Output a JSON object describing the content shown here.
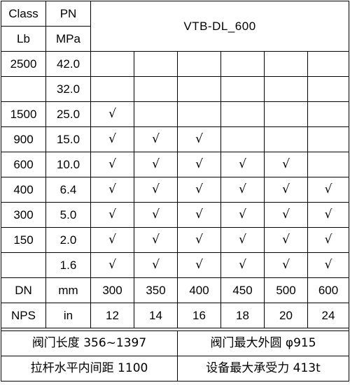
{
  "header": {
    "class_label": "Class",
    "pn_label": "PN",
    "lb_label": "Lb",
    "mpa_label": "MPa",
    "title": "VTB-DL_600"
  },
  "rows": [
    {
      "lb": "2500",
      "mpa": "42.0",
      "marks": [
        "",
        "",
        "",
        "",
        "",
        ""
      ]
    },
    {
      "lb": "",
      "mpa": "32.0",
      "marks": [
        "",
        "",
        "",
        "",
        "",
        ""
      ]
    },
    {
      "lb": "1500",
      "mpa": "25.0",
      "marks": [
        "√",
        "",
        "",
        "",
        "",
        ""
      ]
    },
    {
      "lb": "900",
      "mpa": "15.0",
      "marks": [
        "√",
        "√",
        "√",
        "",
        "",
        ""
      ]
    },
    {
      "lb": "600",
      "mpa": "10.0",
      "marks": [
        "√",
        "√",
        "√",
        "√",
        "√",
        ""
      ]
    },
    {
      "lb": "400",
      "mpa": "6.4",
      "marks": [
        "√",
        "√",
        "√",
        "√",
        "√",
        "√"
      ]
    },
    {
      "lb": "300",
      "mpa": "5.0",
      "marks": [
        "√",
        "√",
        "√",
        "√",
        "√",
        "√"
      ]
    },
    {
      "lb": "150",
      "mpa": "2.0",
      "marks": [
        "√",
        "√",
        "√",
        "√",
        "√",
        "√"
      ]
    },
    {
      "lb": "",
      "mpa": "1.6",
      "marks": [
        "√",
        "√",
        "√",
        "√",
        "√",
        "√"
      ]
    }
  ],
  "dn_row": {
    "label": "DN",
    "unit": "mm",
    "values": [
      "300",
      "350",
      "400",
      "450",
      "500",
      "600"
    ]
  },
  "nps_row": {
    "label": "NPS",
    "unit": "in",
    "values": [
      "12",
      "14",
      "16",
      "18",
      "20",
      "24"
    ]
  },
  "footer": {
    "valve_length": "阀门长度 356~1397",
    "valve_max_od": "阀门最大外圆 φ915",
    "tie_rod_spacing": "拉杆水平内间距 1100",
    "max_load": "设备最大承受力 413t"
  }
}
